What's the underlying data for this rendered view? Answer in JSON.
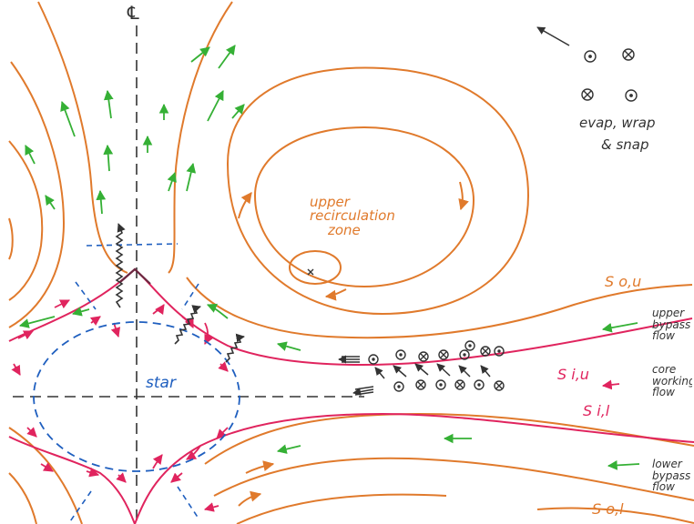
{
  "centerline_symbol": "℄",
  "legend": {
    "caption_line1": "evap, wrap",
    "caption_line2": "& snap",
    "symbols": [
      "⊙",
      "⊗",
      "⊗",
      "⊙"
    ]
  },
  "recirc": {
    "line1": "upper",
    "line2": "recirculation",
    "line3": "zone"
  },
  "star_label": "star",
  "streamlines": {
    "so_u": "S o,u",
    "si_u": "S i,u",
    "si_l": "S i,l",
    "so_l": "S o,l"
  },
  "flows": {
    "upper_bypass": "upper\nbypass\nflow",
    "core_working": "core\nworking\nflow",
    "lower_bypass": "lower\nbypass\nflow"
  },
  "colors": {
    "orange": "#e07a2c",
    "pink": "#e0245e",
    "green": "#35b035",
    "blue": "#1f5fbf",
    "dark": "#333333"
  }
}
